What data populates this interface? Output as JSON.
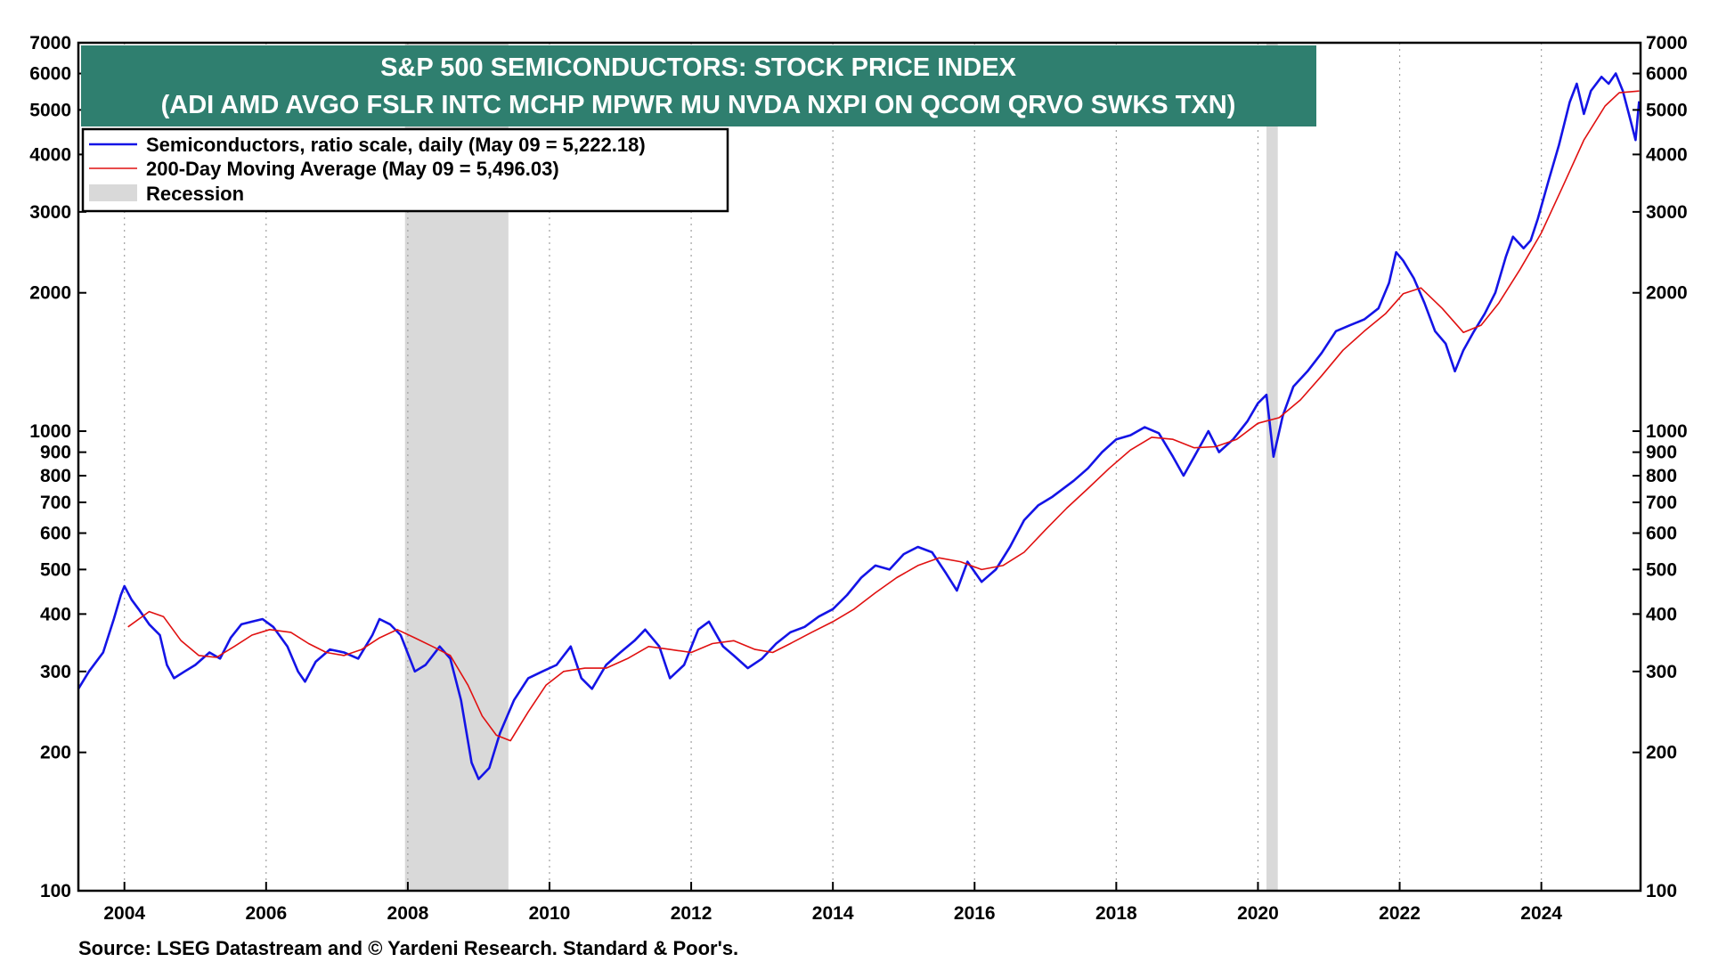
{
  "chart_data": {
    "type": "line",
    "title": "S&P 500 SEMICONDUCTORS: STOCK PRICE INDEX",
    "subtitle": "(ADI AMD AVGO FSLR INTC MCHP MPWR MU NVDA NXPI ON QCOM QRVO SWKS TXN)",
    "source": "Source: LSEG Datastream and © Yardeni Research. Standard & Poor's.",
    "y_scale": "log",
    "ylim": [
      100,
      7000
    ],
    "xlim": [
      2003.35,
      2025.4
    ],
    "x_ticks": [
      2004,
      2006,
      2008,
      2010,
      2012,
      2014,
      2016,
      2018,
      2020,
      2022,
      2024
    ],
    "x_tick_labels": [
      "2004",
      "2006",
      "2008",
      "2010",
      "2012",
      "2014",
      "2016",
      "2018",
      "2020",
      "2022",
      "2024"
    ],
    "y_ticks": [
      100,
      200,
      300,
      400,
      500,
      600,
      700,
      800,
      900,
      1000,
      2000,
      3000,
      4000,
      5000,
      6000,
      7000
    ],
    "y_tick_labels": [
      "100",
      "200",
      "300",
      "400",
      "500",
      "600",
      "700",
      "800",
      "900",
      "1000",
      "2000",
      "3000",
      "4000",
      "5000",
      "6000",
      "7000"
    ],
    "grid": "vertical dotted at year ticks",
    "legend_placement": "top-left",
    "recessions": [
      {
        "start": 2007.96,
        "end": 2009.42
      },
      {
        "start": 2020.12,
        "end": 2020.28
      }
    ],
    "legend": {
      "series_label": "Semiconductors, ratio scale, daily (May 09 = 5,222.18)",
      "ma_label": "200-Day Moving Average (May 09 = 5,496.03)",
      "recession_label": "Recession"
    },
    "colors": {
      "series": "#1414e6",
      "moving_average": "#e01010",
      "recession": "#d9d9d9",
      "title_bg": "#2f7f6f",
      "title_text": "#ffffff"
    },
    "series": [
      {
        "name": "Semiconductors, ratio scale, daily",
        "points": [
          [
            2003.35,
            275
          ],
          [
            2003.5,
            300
          ],
          [
            2003.7,
            330
          ],
          [
            2003.85,
            390
          ],
          [
            2003.95,
            440
          ],
          [
            2004.0,
            460
          ],
          [
            2004.1,
            430
          ],
          [
            2004.2,
            410
          ],
          [
            2004.35,
            380
          ],
          [
            2004.5,
            360
          ],
          [
            2004.6,
            310
          ],
          [
            2004.7,
            290
          ],
          [
            2004.85,
            300
          ],
          [
            2005.0,
            310
          ],
          [
            2005.2,
            330
          ],
          [
            2005.35,
            320
          ],
          [
            2005.5,
            355
          ],
          [
            2005.65,
            380
          ],
          [
            2005.8,
            385
          ],
          [
            2005.95,
            390
          ],
          [
            2006.0,
            385
          ],
          [
            2006.1,
            375
          ],
          [
            2006.3,
            340
          ],
          [
            2006.45,
            300
          ],
          [
            2006.55,
            285
          ],
          [
            2006.7,
            315
          ],
          [
            2006.9,
            335
          ],
          [
            2007.1,
            330
          ],
          [
            2007.3,
            320
          ],
          [
            2007.5,
            360
          ],
          [
            2007.6,
            390
          ],
          [
            2007.75,
            380
          ],
          [
            2007.9,
            360
          ],
          [
            2008.1,
            300
          ],
          [
            2008.25,
            310
          ],
          [
            2008.45,
            340
          ],
          [
            2008.6,
            320
          ],
          [
            2008.75,
            260
          ],
          [
            2008.9,
            190
          ],
          [
            2009.0,
            175
          ],
          [
            2009.15,
            185
          ],
          [
            2009.3,
            220
          ],
          [
            2009.5,
            260
          ],
          [
            2009.7,
            290
          ],
          [
            2009.9,
            300
          ],
          [
            2010.1,
            310
          ],
          [
            2010.3,
            340
          ],
          [
            2010.45,
            290
          ],
          [
            2010.6,
            275
          ],
          [
            2010.8,
            310
          ],
          [
            2011.0,
            330
          ],
          [
            2011.2,
            350
          ],
          [
            2011.35,
            370
          ],
          [
            2011.55,
            340
          ],
          [
            2011.7,
            290
          ],
          [
            2011.9,
            310
          ],
          [
            2012.1,
            370
          ],
          [
            2012.25,
            385
          ],
          [
            2012.45,
            340
          ],
          [
            2012.6,
            325
          ],
          [
            2012.8,
            305
          ],
          [
            2013.0,
            320
          ],
          [
            2013.2,
            345
          ],
          [
            2013.4,
            365
          ],
          [
            2013.6,
            375
          ],
          [
            2013.8,
            395
          ],
          [
            2014.0,
            410
          ],
          [
            2014.2,
            440
          ],
          [
            2014.4,
            480
          ],
          [
            2014.6,
            510
          ],
          [
            2014.8,
            500
          ],
          [
            2015.0,
            540
          ],
          [
            2015.2,
            560
          ],
          [
            2015.4,
            545
          ],
          [
            2015.6,
            490
          ],
          [
            2015.75,
            450
          ],
          [
            2015.9,
            520
          ],
          [
            2016.1,
            470
          ],
          [
            2016.3,
            500
          ],
          [
            2016.5,
            560
          ],
          [
            2016.7,
            640
          ],
          [
            2016.9,
            690
          ],
          [
            2017.1,
            720
          ],
          [
            2017.4,
            780
          ],
          [
            2017.6,
            830
          ],
          [
            2017.8,
            900
          ],
          [
            2018.0,
            960
          ],
          [
            2018.2,
            980
          ],
          [
            2018.4,
            1020
          ],
          [
            2018.6,
            990
          ],
          [
            2018.8,
            880
          ],
          [
            2018.95,
            800
          ],
          [
            2019.1,
            880
          ],
          [
            2019.3,
            1000
          ],
          [
            2019.45,
            900
          ],
          [
            2019.65,
            960
          ],
          [
            2019.85,
            1050
          ],
          [
            2020.0,
            1150
          ],
          [
            2020.12,
            1200
          ],
          [
            2020.22,
            880
          ],
          [
            2020.35,
            1080
          ],
          [
            2020.5,
            1250
          ],
          [
            2020.7,
            1350
          ],
          [
            2020.9,
            1480
          ],
          [
            2021.1,
            1650
          ],
          [
            2021.3,
            1700
          ],
          [
            2021.5,
            1750
          ],
          [
            2021.7,
            1850
          ],
          [
            2021.85,
            2100
          ],
          [
            2021.95,
            2450
          ],
          [
            2022.05,
            2350
          ],
          [
            2022.2,
            2150
          ],
          [
            2022.35,
            1900
          ],
          [
            2022.5,
            1650
          ],
          [
            2022.65,
            1550
          ],
          [
            2022.78,
            1350
          ],
          [
            2022.9,
            1500
          ],
          [
            2023.05,
            1650
          ],
          [
            2023.2,
            1800
          ],
          [
            2023.35,
            2000
          ],
          [
            2023.5,
            2400
          ],
          [
            2023.6,
            2650
          ],
          [
            2023.75,
            2500
          ],
          [
            2023.85,
            2600
          ],
          [
            2023.95,
            2900
          ],
          [
            2024.1,
            3500
          ],
          [
            2024.25,
            4200
          ],
          [
            2024.4,
            5200
          ],
          [
            2024.5,
            5700
          ],
          [
            2024.6,
            4900
          ],
          [
            2024.7,
            5500
          ],
          [
            2024.85,
            5900
          ],
          [
            2024.95,
            5700
          ],
          [
            2025.05,
            6000
          ],
          [
            2025.15,
            5500
          ],
          [
            2025.25,
            4800
          ],
          [
            2025.33,
            4300
          ],
          [
            2025.38,
            5222
          ]
        ]
      },
      {
        "name": "200-Day Moving Average",
        "points": [
          [
            2004.05,
            375
          ],
          [
            2004.35,
            405
          ],
          [
            2004.55,
            395
          ],
          [
            2004.8,
            350
          ],
          [
            2005.05,
            325
          ],
          [
            2005.3,
            322
          ],
          [
            2005.55,
            340
          ],
          [
            2005.8,
            360
          ],
          [
            2006.05,
            370
          ],
          [
            2006.35,
            365
          ],
          [
            2006.6,
            345
          ],
          [
            2006.85,
            330
          ],
          [
            2007.1,
            325
          ],
          [
            2007.35,
            335
          ],
          [
            2007.6,
            355
          ],
          [
            2007.85,
            370
          ],
          [
            2008.1,
            355
          ],
          [
            2008.35,
            340
          ],
          [
            2008.6,
            325
          ],
          [
            2008.85,
            280
          ],
          [
            2009.05,
            240
          ],
          [
            2009.25,
            218
          ],
          [
            2009.45,
            212
          ],
          [
            2009.7,
            245
          ],
          [
            2009.95,
            280
          ],
          [
            2010.2,
            300
          ],
          [
            2010.5,
            305
          ],
          [
            2010.8,
            305
          ],
          [
            2011.1,
            320
          ],
          [
            2011.4,
            340
          ],
          [
            2011.7,
            335
          ],
          [
            2012.0,
            330
          ],
          [
            2012.3,
            345
          ],
          [
            2012.6,
            350
          ],
          [
            2012.9,
            335
          ],
          [
            2013.15,
            330
          ],
          [
            2013.4,
            345
          ],
          [
            2013.7,
            365
          ],
          [
            2014.0,
            385
          ],
          [
            2014.3,
            410
          ],
          [
            2014.6,
            445
          ],
          [
            2014.9,
            480
          ],
          [
            2015.2,
            510
          ],
          [
            2015.5,
            530
          ],
          [
            2015.8,
            520
          ],
          [
            2016.1,
            500
          ],
          [
            2016.4,
            510
          ],
          [
            2016.7,
            545
          ],
          [
            2017.0,
            610
          ],
          [
            2017.3,
            680
          ],
          [
            2017.6,
            750
          ],
          [
            2017.9,
            830
          ],
          [
            2018.2,
            910
          ],
          [
            2018.5,
            970
          ],
          [
            2018.8,
            960
          ],
          [
            2019.1,
            920
          ],
          [
            2019.4,
            925
          ],
          [
            2019.7,
            960
          ],
          [
            2020.0,
            1040
          ],
          [
            2020.3,
            1070
          ],
          [
            2020.6,
            1170
          ],
          [
            2020.9,
            1320
          ],
          [
            2021.2,
            1500
          ],
          [
            2021.5,
            1650
          ],
          [
            2021.8,
            1800
          ],
          [
            2022.05,
            1990
          ],
          [
            2022.3,
            2050
          ],
          [
            2022.6,
            1850
          ],
          [
            2022.9,
            1640
          ],
          [
            2023.15,
            1700
          ],
          [
            2023.4,
            1900
          ],
          [
            2023.7,
            2250
          ],
          [
            2024.0,
            2700
          ],
          [
            2024.3,
            3400
          ],
          [
            2024.6,
            4300
          ],
          [
            2024.9,
            5100
          ],
          [
            2025.1,
            5450
          ],
          [
            2025.38,
            5496
          ]
        ]
      }
    ]
  }
}
